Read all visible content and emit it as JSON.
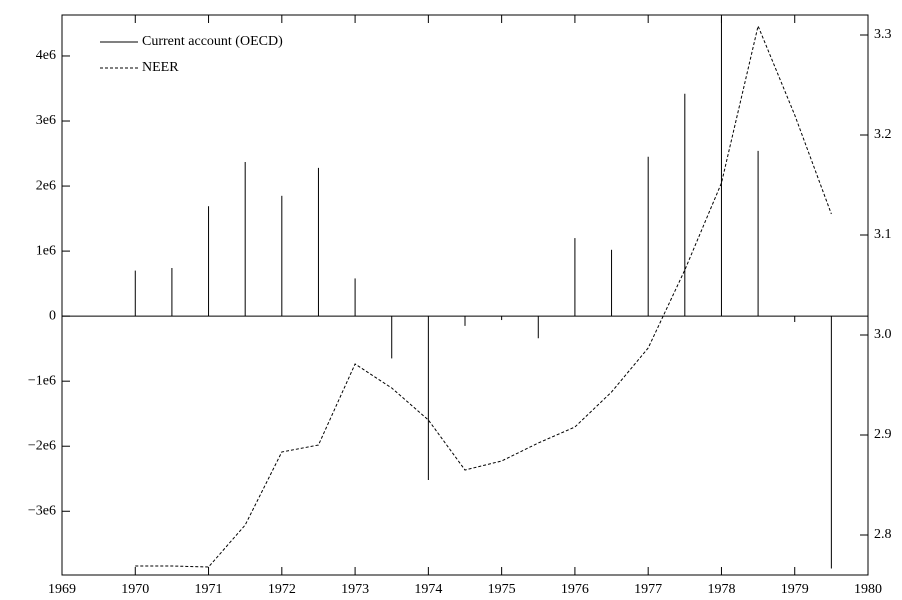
{
  "chart_data": {
    "type": "combo",
    "x": [
      1970,
      1970.5,
      1971,
      1971.5,
      1972,
      1972.5,
      1973,
      1973.5,
      1974,
      1974.5,
      1975,
      1975.5,
      1976,
      1976.5,
      1977,
      1977.5,
      1978,
      1978.5,
      1979,
      1979.5
    ],
    "series": [
      {
        "name": "Current account (OECD)",
        "type": "bar",
        "color": "#000000",
        "axis": "y",
        "values": [
          700000,
          740000,
          1690000,
          2370000,
          1850000,
          2280000,
          580000,
          -650000,
          -2520000,
          -150000,
          -60000,
          -340000,
          1200000,
          1020000,
          2450000,
          3420000,
          4600000,
          2540000,
          -90000,
          -3880000
        ]
      },
      {
        "name": "NEER",
        "type": "line",
        "color": "#000000",
        "dashed": true,
        "axis": "y2",
        "values": [
          2.769,
          2.769,
          2.768,
          2.81,
          2.883,
          2.89,
          2.971,
          2.947,
          2.915,
          2.865,
          2.874,
          2.892,
          2.908,
          2.943,
          2.987,
          3.065,
          3.152,
          3.309,
          3.22,
          3.121
        ]
      }
    ],
    "xlim": [
      1969,
      1980
    ],
    "xticks": [
      1969,
      1970,
      1971,
      1972,
      1973,
      1974,
      1975,
      1976,
      1977,
      1978,
      1979,
      1980
    ],
    "ylim": [
      -3980000,
      4630000
    ],
    "yticks": [
      {
        "value": -3000000,
        "label": "−3e6"
      },
      {
        "value": -2000000,
        "label": "−2e6"
      },
      {
        "value": -1000000,
        "label": "−1e6"
      },
      0,
      {
        "value": 1000000,
        "label": "1e6"
      },
      {
        "value": 2000000,
        "label": "2e6"
      },
      {
        "value": 3000000,
        "label": "3e6"
      },
      {
        "value": 4000000,
        "label": "4e6"
      }
    ],
    "y2lim": [
      2.76,
      3.32
    ],
    "y2ticks": [
      2.8,
      2.9,
      {
        "value": 3,
        "label": "3.0"
      },
      3.1,
      3.2,
      3.3
    ],
    "legend": "upper-left",
    "grid": false
  }
}
